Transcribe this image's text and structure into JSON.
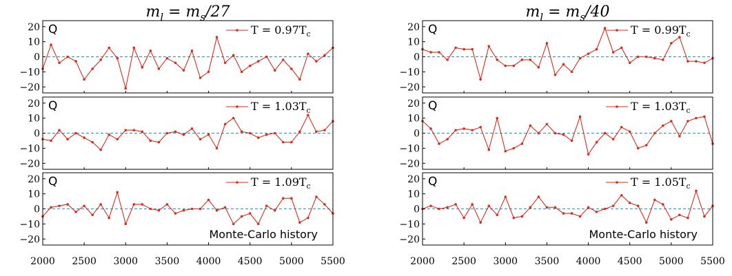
{
  "chart_data": [
    {
      "type": "line",
      "column": 0,
      "row": 0,
      "title": "m_l = m_s/27",
      "panel_label": "Q",
      "series": [
        {
          "name": "T = 0.97T_c",
          "color": "#d62d1f",
          "x": [
            2000,
            2100,
            2200,
            2300,
            2400,
            2500,
            2600,
            2700,
            2800,
            2900,
            3000,
            3100,
            3200,
            3300,
            3400,
            3500,
            3600,
            3700,
            3800,
            3900,
            4000,
            4100,
            4200,
            4300,
            4400,
            4500,
            4600,
            4700,
            4800,
            4900,
            5000,
            5100,
            5200,
            5300,
            5400,
            5500
          ],
          "y": [
            -8,
            8,
            -4,
            0,
            -3,
            -15,
            -8,
            -2,
            6,
            -1,
            -21,
            6,
            -7,
            4,
            -8,
            -1,
            -4,
            -9,
            4,
            -14,
            -10,
            13,
            -4,
            1,
            -10,
            -6,
            -3,
            0,
            -9,
            -2,
            -8,
            -15,
            2,
            -3,
            1,
            6
          ]
        }
      ],
      "ylim": [
        -24,
        24
      ],
      "xlim": [
        2000,
        5500
      ],
      "yticks": [
        20,
        10,
        0,
        -10,
        -20
      ],
      "ytick_labels": [
        "20",
        "10",
        "0",
        "−10",
        "−20"
      ],
      "grid": false,
      "legend_position": "top-right"
    },
    {
      "type": "line",
      "column": 0,
      "row": 1,
      "panel_label": "Q",
      "series": [
        {
          "name": "T = 1.03T_c",
          "color": "#d62d1f",
          "x": [
            2000,
            2100,
            2200,
            2300,
            2400,
            2500,
            2600,
            2700,
            2800,
            2900,
            3000,
            3100,
            3200,
            3300,
            3400,
            3500,
            3600,
            3700,
            3800,
            3900,
            4000,
            4100,
            4200,
            4300,
            4400,
            4500,
            4600,
            4700,
            4800,
            4900,
            5000,
            5100,
            5200,
            5300,
            5400,
            5500
          ],
          "y": [
            -4,
            -5,
            2,
            -4,
            0,
            -3,
            -6,
            -11,
            -1,
            -4,
            2,
            2,
            1,
            -5,
            -6,
            0,
            1,
            -1,
            3,
            -4,
            -1,
            -10,
            6,
            10,
            1,
            0,
            -3,
            -1,
            0,
            -6,
            -6,
            1,
            12,
            1,
            2,
            8
          ]
        }
      ],
      "ylim": [
        -24,
        24
      ],
      "xlim": [
        2000,
        5500
      ],
      "yticks": [
        20,
        10,
        0,
        -10,
        -20
      ],
      "ytick_labels": [
        "20",
        "10",
        "0",
        "−10",
        "−20"
      ],
      "grid": false,
      "legend_position": "top-right"
    },
    {
      "type": "line",
      "column": 0,
      "row": 2,
      "panel_label": "Q",
      "annotation": "Monte-Carlo history",
      "series": [
        {
          "name": "T = 1.09T_c",
          "color": "#d62d1f",
          "x": [
            2000,
            2100,
            2200,
            2300,
            2400,
            2500,
            2600,
            2700,
            2800,
            2900,
            3000,
            3100,
            3200,
            3300,
            3400,
            3500,
            3600,
            3700,
            3800,
            3900,
            4000,
            4100,
            4200,
            4300,
            4400,
            4500,
            4600,
            4700,
            4800,
            4900,
            5000,
            5100,
            5200,
            5300,
            5400,
            5500
          ],
          "y": [
            -5,
            1,
            2,
            3,
            -2,
            2,
            -4,
            3,
            -6,
            11,
            -10,
            3,
            3,
            0,
            -1,
            3,
            -3,
            -1,
            0,
            0,
            6,
            -1,
            1,
            -10,
            -5,
            -3,
            -10,
            2,
            -1,
            7,
            7,
            -9,
            -6,
            8,
            3,
            -3
          ]
        }
      ],
      "ylim": [
        -24,
        24
      ],
      "xlim": [
        2000,
        5500
      ],
      "yticks": [
        20,
        10,
        0,
        -10,
        -20
      ],
      "ytick_labels": [
        "20",
        "10",
        "0",
        "−10",
        "−20"
      ],
      "xticks": [
        2000,
        2500,
        3000,
        3500,
        4000,
        4500,
        5000,
        5500
      ],
      "xtick_labels": [
        "2000",
        "2500",
        "3000",
        "3500",
        "4000",
        "4500",
        "5000",
        "5500"
      ],
      "grid": false,
      "legend_position": "top-right"
    },
    {
      "type": "line",
      "column": 1,
      "row": 0,
      "title": "m_l = m_s/40",
      "panel_label": "Q",
      "series": [
        {
          "name": "T = 0.99T_c",
          "color": "#d62d1f",
          "x": [
            2000,
            2100,
            2200,
            2300,
            2400,
            2500,
            2600,
            2700,
            2800,
            2900,
            3000,
            3100,
            3200,
            3300,
            3400,
            3500,
            3600,
            3700,
            3800,
            3900,
            4000,
            4100,
            4200,
            4300,
            4400,
            4500,
            4600,
            4700,
            4800,
            4900,
            5000,
            5100,
            5200,
            5300,
            5400,
            5500
          ],
          "y": [
            5,
            3,
            3,
            -2,
            6,
            5,
            5,
            -15,
            7,
            -2,
            -6,
            -6,
            -2,
            -2,
            -7,
            9,
            -12,
            -5,
            -10,
            -1,
            2,
            5,
            19,
            3,
            6,
            -4,
            0,
            0,
            -1,
            -2,
            9,
            13,
            -3,
            -3,
            -4,
            -1
          ]
        }
      ],
      "ylim": [
        -24,
        24
      ],
      "xlim": [
        2000,
        5500
      ],
      "yticks": [
        20,
        10,
        0,
        -10,
        -20
      ],
      "ytick_labels": [
        "20",
        "10",
        "0",
        "−10",
        "−20"
      ],
      "grid": false,
      "legend_position": "top-right"
    },
    {
      "type": "line",
      "column": 1,
      "row": 1,
      "panel_label": "Q",
      "series": [
        {
          "name": "T = 1.03T_c",
          "color": "#d62d1f",
          "x": [
            2000,
            2100,
            2200,
            2300,
            2400,
            2500,
            2600,
            2700,
            2800,
            2900,
            3000,
            3100,
            3200,
            3300,
            3400,
            3500,
            3600,
            3700,
            3800,
            3900,
            4000,
            4100,
            4200,
            4300,
            4400,
            4500,
            4600,
            4700,
            4800,
            4900,
            5000,
            5100,
            5200,
            5300,
            5400,
            5500
          ],
          "y": [
            8,
            3,
            -7,
            -4,
            2,
            3,
            2,
            4,
            -11,
            10,
            -12,
            -10,
            -7,
            5,
            0,
            6,
            0,
            -1,
            -5,
            11,
            -14,
            -6,
            0,
            -4,
            4,
            1,
            -10,
            -8,
            0,
            5,
            8,
            -2,
            8,
            10,
            11,
            -7
          ]
        }
      ],
      "ylim": [
        -24,
        24
      ],
      "xlim": [
        2000,
        5500
      ],
      "yticks": [
        20,
        10,
        0,
        -10,
        -20
      ],
      "ytick_labels": [
        "20",
        "10",
        "0",
        "−10",
        "−20"
      ],
      "grid": false,
      "legend_position": "top-right"
    },
    {
      "type": "line",
      "column": 1,
      "row": 2,
      "panel_label": "Q",
      "annotation": "Monte-Carlo history",
      "series": [
        {
          "name": "T = 1.05T_c",
          "color": "#d62d1f",
          "x": [
            2000,
            2100,
            2200,
            2300,
            2400,
            2500,
            2600,
            2700,
            2800,
            2900,
            3000,
            3100,
            3200,
            3300,
            3400,
            3500,
            3600,
            3700,
            3800,
            3900,
            4000,
            4100,
            4200,
            4300,
            4400,
            4500,
            4600,
            4700,
            4800,
            4900,
            5000,
            5100,
            5200,
            5300,
            5400,
            5500
          ],
          "y": [
            0,
            2,
            0,
            1,
            3,
            -6,
            3,
            -9,
            2,
            -4,
            8,
            -6,
            -5,
            1,
            8,
            1,
            1,
            -3,
            -3,
            -5,
            1,
            -2,
            0,
            2,
            9,
            4,
            2,
            -9,
            6,
            3,
            -7,
            -4,
            -6,
            12,
            -5,
            2
          ]
        }
      ],
      "ylim": [
        -24,
        24
      ],
      "xlim": [
        2000,
        5500
      ],
      "yticks": [
        20,
        10,
        0,
        -10,
        -20
      ],
      "ytick_labels": [
        "20",
        "10",
        "0",
        "−10",
        "−20"
      ],
      "xticks": [
        2000,
        2500,
        3000,
        3500,
        4000,
        4500,
        5000,
        5500
      ],
      "xtick_labels": [
        "2000",
        "2500",
        "3000",
        "3500",
        "4000",
        "4500",
        "5000",
        "5500"
      ],
      "grid": false,
      "legend_position": "top-right"
    }
  ],
  "colors": {
    "series": "#d62d1f",
    "zero_line": "#1f8fc7",
    "axes": "#000000"
  }
}
